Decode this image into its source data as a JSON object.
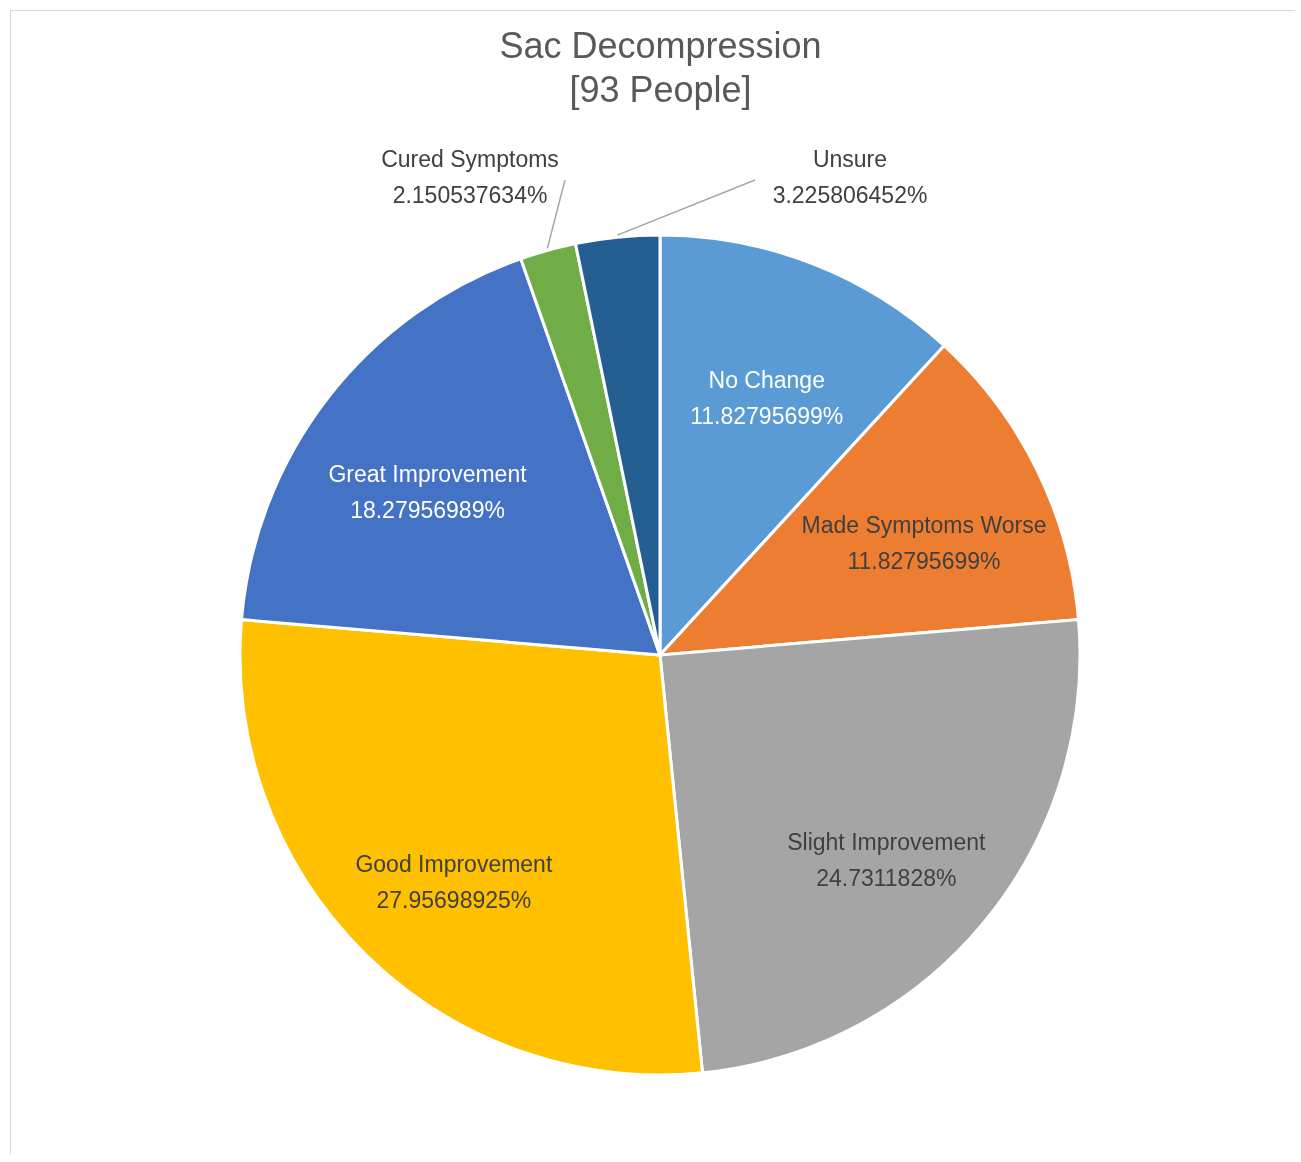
{
  "chart_data": {
    "type": "pie",
    "title": "Sac Decompression",
    "subtitle": "[93 People]",
    "categories": [
      "No Change",
      "Made Symptoms Worse",
      "Slight Improvement",
      "Good Improvement",
      "Great Improvement",
      "Cured Symptoms",
      "Unsure"
    ],
    "values": [
      11.82795699,
      11.82795699,
      24.7311828,
      27.95698925,
      18.27956989,
      2.150537634,
      3.225806452
    ],
    "value_labels": [
      "11.82795699%",
      "11.82795699%",
      "24.7311828%",
      "27.95698925%",
      "18.27956989%",
      "2.150537634%",
      "3.225806452%"
    ],
    "colors": [
      "#5b9bd5",
      "#ed7d31",
      "#a5a5a5",
      "#ffc000",
      "#4472c4",
      "#70ad47",
      "#255e91"
    ],
    "legend": false
  }
}
